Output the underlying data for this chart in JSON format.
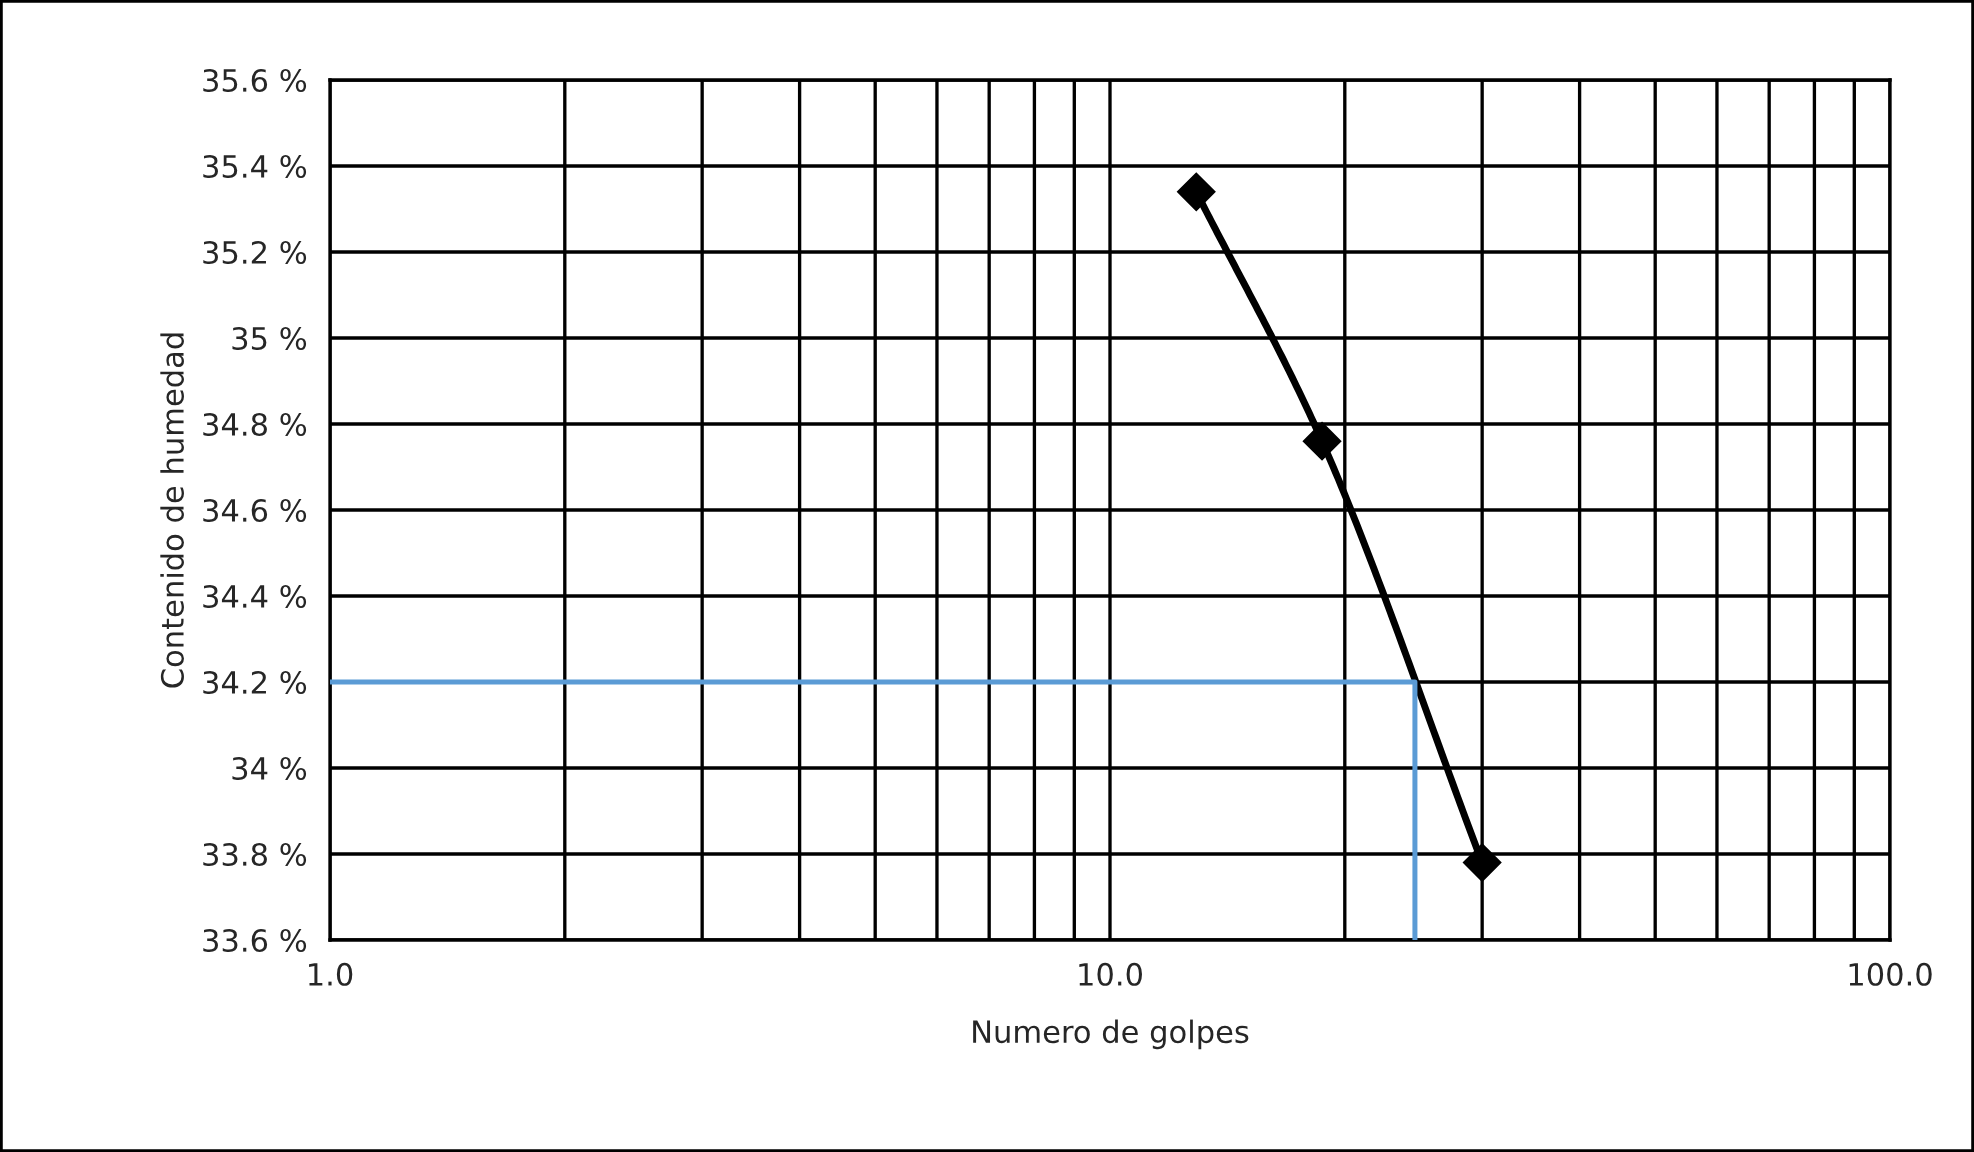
{
  "chart_data": {
    "type": "line",
    "xlabel": "Numero de golpes",
    "ylabel": "Contenido de humedad",
    "log": "x",
    "grid": true,
    "xlim": [
      1,
      100
    ],
    "xticks": [
      {
        "value": 1,
        "label": "1.0"
      },
      {
        "value": 2,
        "label": null
      },
      {
        "value": 3,
        "label": null
      },
      {
        "value": 4,
        "label": null
      },
      {
        "value": 5,
        "label": null
      },
      {
        "value": 6,
        "label": null
      },
      {
        "value": 7,
        "label": null
      },
      {
        "value": 8,
        "label": null
      },
      {
        "value": 9,
        "label": null
      },
      {
        "value": 10,
        "label": "10.0"
      },
      {
        "value": 20,
        "label": null
      },
      {
        "value": 30,
        "label": null
      },
      {
        "value": 40,
        "label": null
      },
      {
        "value": 50,
        "label": null
      },
      {
        "value": 60,
        "label": null
      },
      {
        "value": 70,
        "label": null
      },
      {
        "value": 80,
        "label": null
      },
      {
        "value": 90,
        "label": null
      },
      {
        "value": 100,
        "label": "100.0"
      }
    ],
    "ylim": [
      33.6,
      35.6
    ],
    "yticks": [
      {
        "value": 33.6,
        "label": "33.6 %"
      },
      {
        "value": 33.8,
        "label": "33.8 %"
      },
      {
        "value": 34,
        "label": "34 %"
      },
      {
        "value": 34.2,
        "label": "34.2 %"
      },
      {
        "value": 34.4,
        "label": "34.4 %"
      },
      {
        "value": 34.6,
        "label": "34.6 %"
      },
      {
        "value": 34.8,
        "label": "34.8 %"
      },
      {
        "value": 35,
        "label": "35 %"
      },
      {
        "value": 35.2,
        "label": "35.2 %"
      },
      {
        "value": 35.4,
        "label": "35.4 %"
      },
      {
        "value": 35.6,
        "label": "35.6 %"
      }
    ],
    "series": [
      {
        "color": "#000000",
        "x": [
          12.9,
          18.7,
          30
        ],
        "values": [
          35.34,
          34.76,
          33.78
        ],
        "marker": "diamond",
        "line_style": "solid"
      },
      {
        "color": "#5b9bd5",
        "x": [
          1,
          24.6,
          24.6
        ],
        "values": [
          34.2,
          34.2,
          33.6
        ],
        "marker": "none",
        "line_style": "solid"
      }
    ]
  }
}
